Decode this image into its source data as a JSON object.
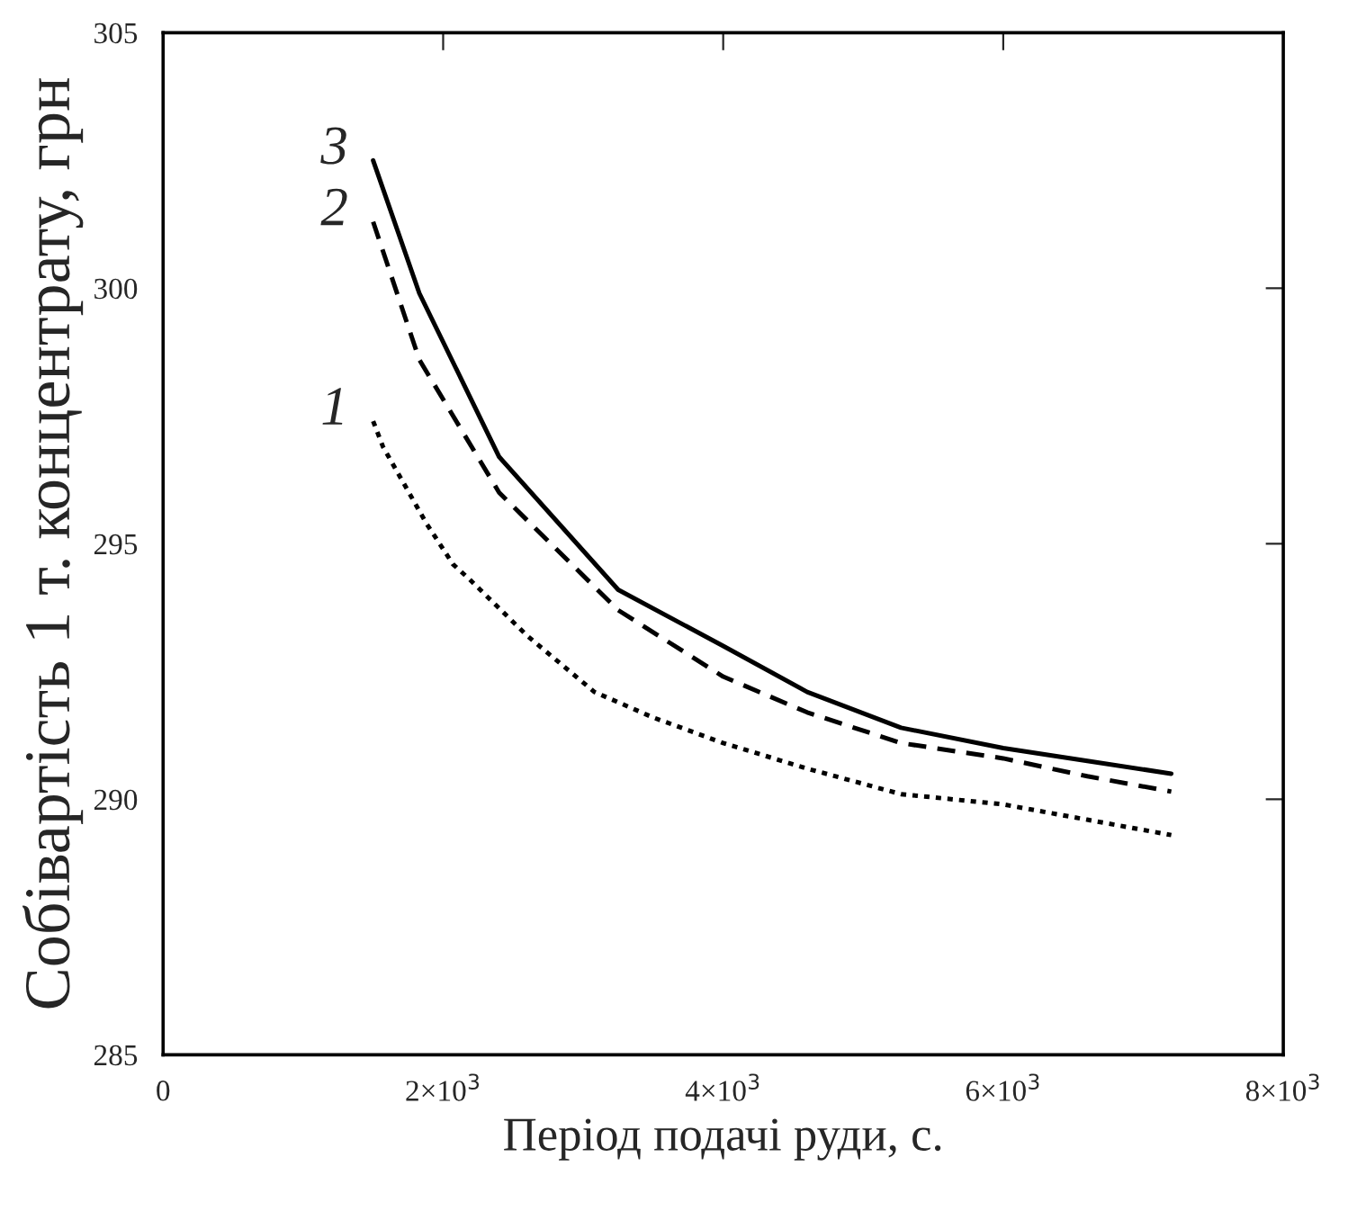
{
  "chart_data": {
    "type": "line",
    "xlabel": "Період подачі руди, с.",
    "ylabel": "Собівартість 1 т. концентрату, грн",
    "xlim": [
      0,
      8000
    ],
    "xticks": [
      0,
      {
        "value": 2000,
        "label": "2×10$^{3}$"
      },
      {
        "value": 4000,
        "label": "4×10$^{3}$"
      },
      {
        "value": 6000,
        "label": "6×10$^{3}$"
      },
      {
        "value": 8000,
        "label": "8×10$^{3}$"
      }
    ],
    "ylim": [
      285,
      305
    ],
    "yticks": [
      285,
      290,
      295,
      300,
      305
    ],
    "grid": false,
    "series": [
      {
        "name": "1",
        "color": "#000000",
        "line_style": "dotted",
        "x": [
          1500,
          1570,
          1880,
          2070,
          2190,
          2600,
          3080,
          3500,
          4000,
          4600,
          5270,
          6000,
          6600,
          7200
        ],
        "values": [
          297.4,
          296.9,
          295.4,
          294.6,
          294.3,
          293.2,
          292.1,
          291.6,
          291.1,
          290.6,
          290.1,
          289.9,
          289.6,
          289.3
        ]
      },
      {
        "name": "2",
        "color": "#000000",
        "line_style": "dashed",
        "x": [
          1500,
          1830,
          2400,
          3250,
          4000,
          4600,
          5270,
          6000,
          6600,
          7200
        ],
        "values": [
          301.3,
          298.6,
          296.0,
          293.7,
          292.4,
          291.7,
          291.1,
          290.8,
          290.45,
          290.15
        ]
      },
      {
        "name": "3",
        "color": "#000000",
        "line_style": "solid",
        "x": [
          1500,
          1830,
          2400,
          3250,
          4000,
          4600,
          5270,
          6000,
          6600,
          7200
        ],
        "values": [
          302.5,
          299.9,
          296.7,
          294.1,
          293.0,
          292.1,
          291.4,
          291.0,
          290.75,
          290.5
        ]
      }
    ]
  }
}
